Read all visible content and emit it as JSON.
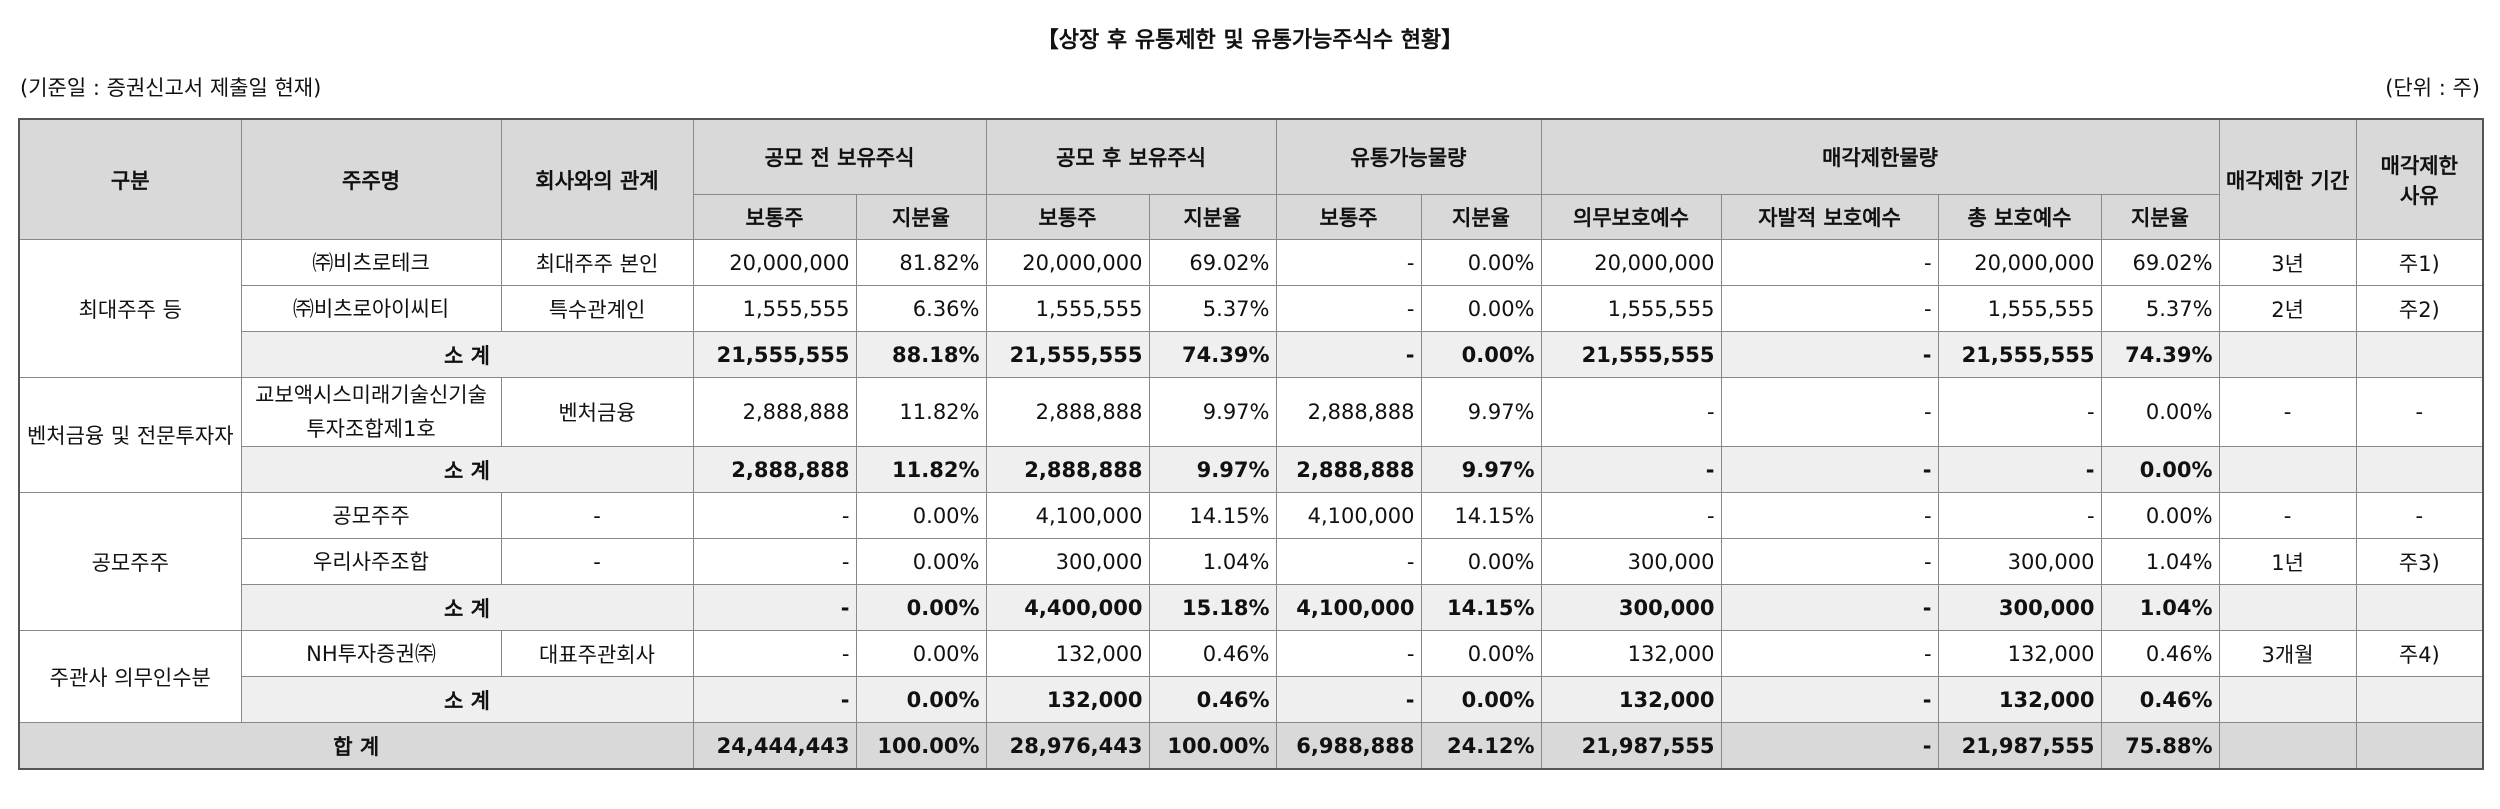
{
  "title": "【상장 후 유통제한 및 유통가능주식수 현황】",
  "basis": "(기준일 : 증권신고서 제출일 현재)",
  "unit": "(단위 : 주)",
  "table": {
    "header": {
      "group_col": "구분",
      "holder_col": "주주명",
      "relation_col": "회사와의 관계",
      "pre_ipo": "공모 전 보유주식",
      "post_ipo": "공모 후 보유주식",
      "tradable": "유통가능물량",
      "restricted": "매각제한물량",
      "period": "매각제한 기간",
      "reason": "매각제한 사유",
      "sub": [
        "보통주",
        "지분율",
        "보통주",
        "지분율",
        "보통주",
        "지분율",
        "의무보호예수",
        "자발적 보호예수",
        "총 보호예수",
        "지분율"
      ]
    },
    "groups": [
      {
        "name": "최대주주 등",
        "rows": [
          {
            "holder": "㈜비츠로테크",
            "relation": "최대주주 본인",
            "values": [
              "20,000,000",
              "81.82%",
              "20,000,000",
              "69.02%",
              "-",
              "0.00%",
              "20,000,000",
              "-",
              "20,000,000",
              "69.02%"
            ],
            "period": "3년",
            "reason": "주1)"
          },
          {
            "holder": "㈜비츠로아이씨티",
            "relation": "특수관계인",
            "values": [
              "1,555,555",
              "6.36%",
              "1,555,555",
              "5.37%",
              "-",
              "0.00%",
              "1,555,555",
              "-",
              "1,555,555",
              "5.37%"
            ],
            "period": "2년",
            "reason": "주2)"
          }
        ],
        "subtotal": {
          "label": "소 계",
          "values": [
            "21,555,555",
            "88.18%",
            "21,555,555",
            "74.39%",
            "-",
            "0.00%",
            "21,555,555",
            "-",
            "21,555,555",
            "74.39%"
          ]
        }
      },
      {
        "name": "벤처금융 및 전문투자자",
        "rows": [
          {
            "holder": "교보액시스미래기술신기술투자조합제1호",
            "relation": "벤처금융",
            "values": [
              "2,888,888",
              "11.82%",
              "2,888,888",
              "9.97%",
              "2,888,888",
              "9.97%",
              "-",
              "-",
              "-",
              "0.00%"
            ],
            "period": "-",
            "reason": "-"
          }
        ],
        "subtotal": {
          "label": "소 계",
          "values": [
            "2,888,888",
            "11.82%",
            "2,888,888",
            "9.97%",
            "2,888,888",
            "9.97%",
            "-",
            "-",
            "-",
            "0.00%"
          ]
        }
      },
      {
        "name": "공모주주",
        "rows": [
          {
            "holder": "공모주주",
            "relation": "-",
            "values": [
              "-",
              "0.00%",
              "4,100,000",
              "14.15%",
              "4,100,000",
              "14.15%",
              "-",
              "-",
              "-",
              "0.00%"
            ],
            "period": "-",
            "reason": "-"
          },
          {
            "holder": "우리사주조합",
            "relation": "-",
            "values": [
              "-",
              "0.00%",
              "300,000",
              "1.04%",
              "-",
              "0.00%",
              "300,000",
              "-",
              "300,000",
              "1.04%"
            ],
            "period": "1년",
            "reason": "주3)"
          }
        ],
        "subtotal": {
          "label": "소 계",
          "values": [
            "-",
            "0.00%",
            "4,400,000",
            "15.18%",
            "4,100,000",
            "14.15%",
            "300,000",
            "-",
            "300,000",
            "1.04%"
          ]
        }
      },
      {
        "name": "주관사 의무인수분",
        "rows": [
          {
            "holder": "NH투자증권㈜",
            "relation": "대표주관회사",
            "values": [
              "-",
              "0.00%",
              "132,000",
              "0.46%",
              "-",
              "0.00%",
              "132,000",
              "-",
              "132,000",
              "0.46%"
            ],
            "period": "3개월",
            "reason": "주4)"
          }
        ],
        "subtotal": {
          "label": "소 계",
          "values": [
            "-",
            "0.00%",
            "132,000",
            "0.46%",
            "-",
            "0.00%",
            "132,000",
            "-",
            "132,000",
            "0.46%"
          ]
        }
      }
    ],
    "total": {
      "label": "합 계",
      "values": [
        "24,444,443",
        "100.00%",
        "28,976,443",
        "100.00%",
        "6,988,888",
        "24.12%",
        "21,987,555",
        "-",
        "21,987,555",
        "75.88%"
      ]
    }
  }
}
